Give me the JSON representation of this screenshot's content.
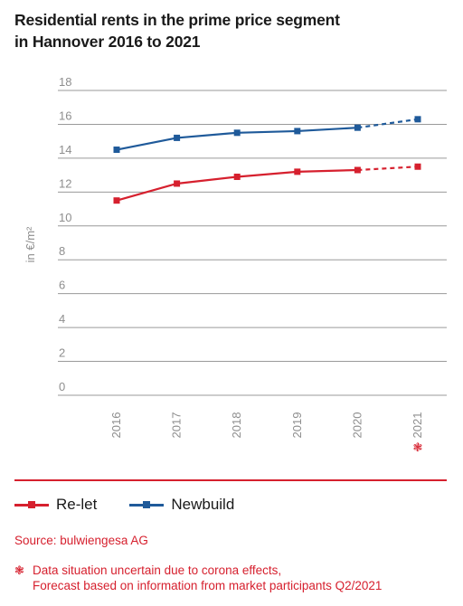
{
  "title_line1": "Residential rents in the prime price segment",
  "title_line2": "in Hannover 2016 to 2021",
  "chart_data": {
    "type": "line",
    "categories": [
      "2016",
      "2017",
      "2018",
      "2019",
      "2020",
      "2021"
    ],
    "ylabel": "in €/m²",
    "ylim": [
      0,
      18
    ],
    "yticks": [
      0,
      2,
      4,
      6,
      8,
      10,
      12,
      14,
      16,
      18
    ],
    "grid": true,
    "legend_position": "bottom-left",
    "forecast_from_category": "2020",
    "series": [
      {
        "name": "Re-let",
        "color": "#d6202e",
        "values": [
          11.5,
          12.5,
          12.9,
          13.2,
          13.3,
          13.5
        ]
      },
      {
        "name": "Newbuild",
        "color": "#1f5a9a",
        "values": [
          14.5,
          15.2,
          15.5,
          15.6,
          15.8,
          16.3
        ]
      }
    ]
  },
  "forecast_icon": "virus-icon",
  "source": "Source: bulwiengesa AG",
  "note_line1": "Data situation uncertain due to corona effects,",
  "note_line2": "Forecast based on information from market participants Q2/2021"
}
